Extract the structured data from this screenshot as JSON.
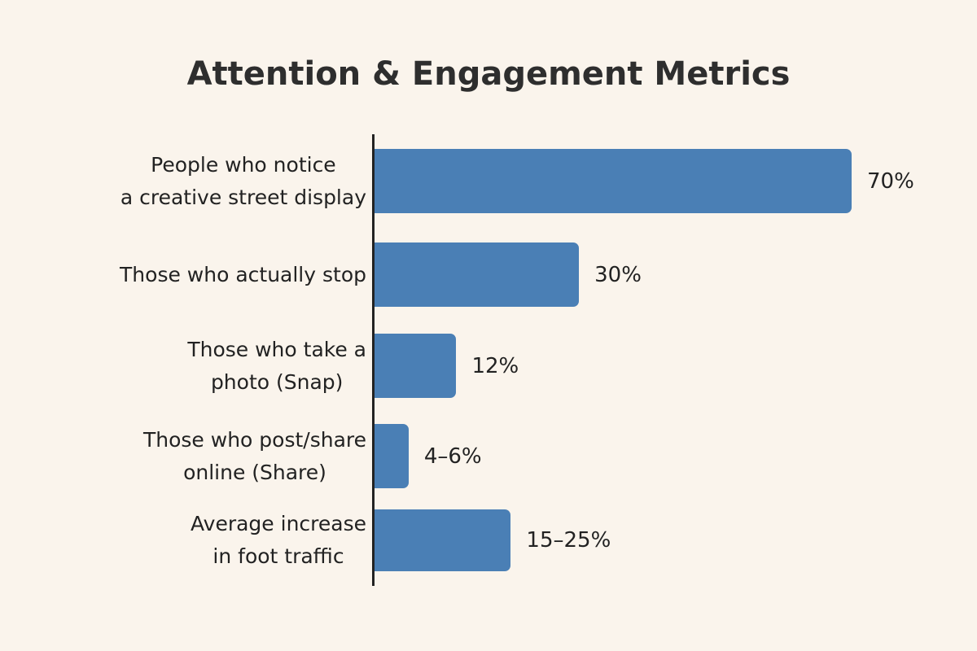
{
  "chart_data": {
    "type": "bar",
    "orientation": "horizontal",
    "title": "Attention & Engagement Metrics",
    "categories": [
      "People who notice\na creative street display",
      "Those who actually stop",
      "Those who take a\nphoto (Snap)",
      "Those who post/share\nonline (Share)",
      "Average increase\nin foot traffic"
    ],
    "values": [
      70,
      30,
      12,
      5,
      20
    ],
    "value_labels": [
      "70%",
      "30%",
      "12%",
      "4–6%",
      "15–25%"
    ],
    "unit": "%",
    "grid": false,
    "legend": "none",
    "colors": {
      "bar": "#4a7fb5",
      "background": "#faf4ec"
    }
  }
}
